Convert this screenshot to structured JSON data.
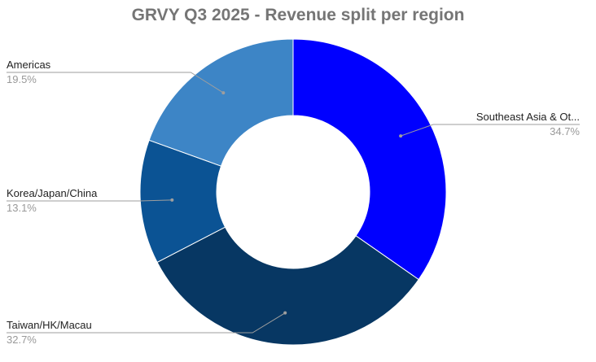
{
  "chart_data": {
    "type": "pie",
    "variant": "donut",
    "title": "GRVY Q3 2025 - Revenue split per region",
    "legend": "none",
    "slices": [
      {
        "label": "Southeast Asia & Ot...",
        "value": 34.7,
        "value_label": "34.7%",
        "color": "#0000ff"
      },
      {
        "label": "Taiwan/HK/Macau",
        "value": 32.7,
        "value_label": "32.7%",
        "color": "#073763"
      },
      {
        "label": "Korea/Japan/China",
        "value": 13.1,
        "value_label": "13.1%",
        "color": "#0b5394"
      },
      {
        "label": "Americas",
        "value": 19.5,
        "value_label": "19.5%",
        "color": "#3d85c6"
      }
    ]
  }
}
